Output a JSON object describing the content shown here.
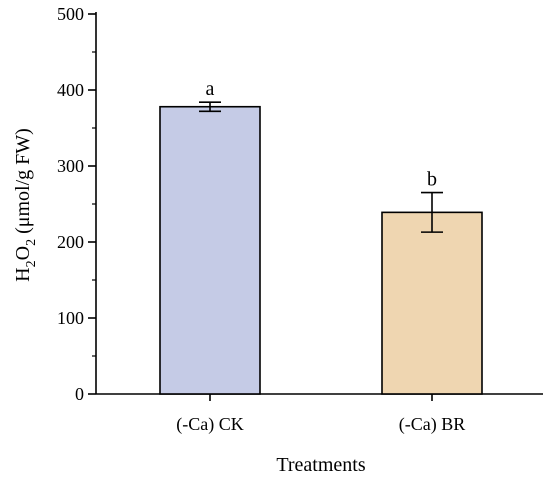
{
  "chart_data": {
    "type": "bar",
    "categories": [
      "(-Ca) CK",
      "(-Ca) BR"
    ],
    "values": [
      378,
      239
    ],
    "errors": [
      6,
      26
    ],
    "significance": [
      "a",
      "b"
    ],
    "colors": [
      "#c5cbe6",
      "#efd6b1"
    ],
    "xlabel": "Treatments",
    "ylabel": {
      "main": "H",
      "sub1": "2",
      "mid": "O",
      "sub2": "2",
      "unit": " (μmol/g FW)"
    },
    "ylim": [
      0,
      500
    ],
    "yticks": [
      "0",
      "100",
      "200",
      "300",
      "400",
      "500"
    ],
    "grid": false
  }
}
